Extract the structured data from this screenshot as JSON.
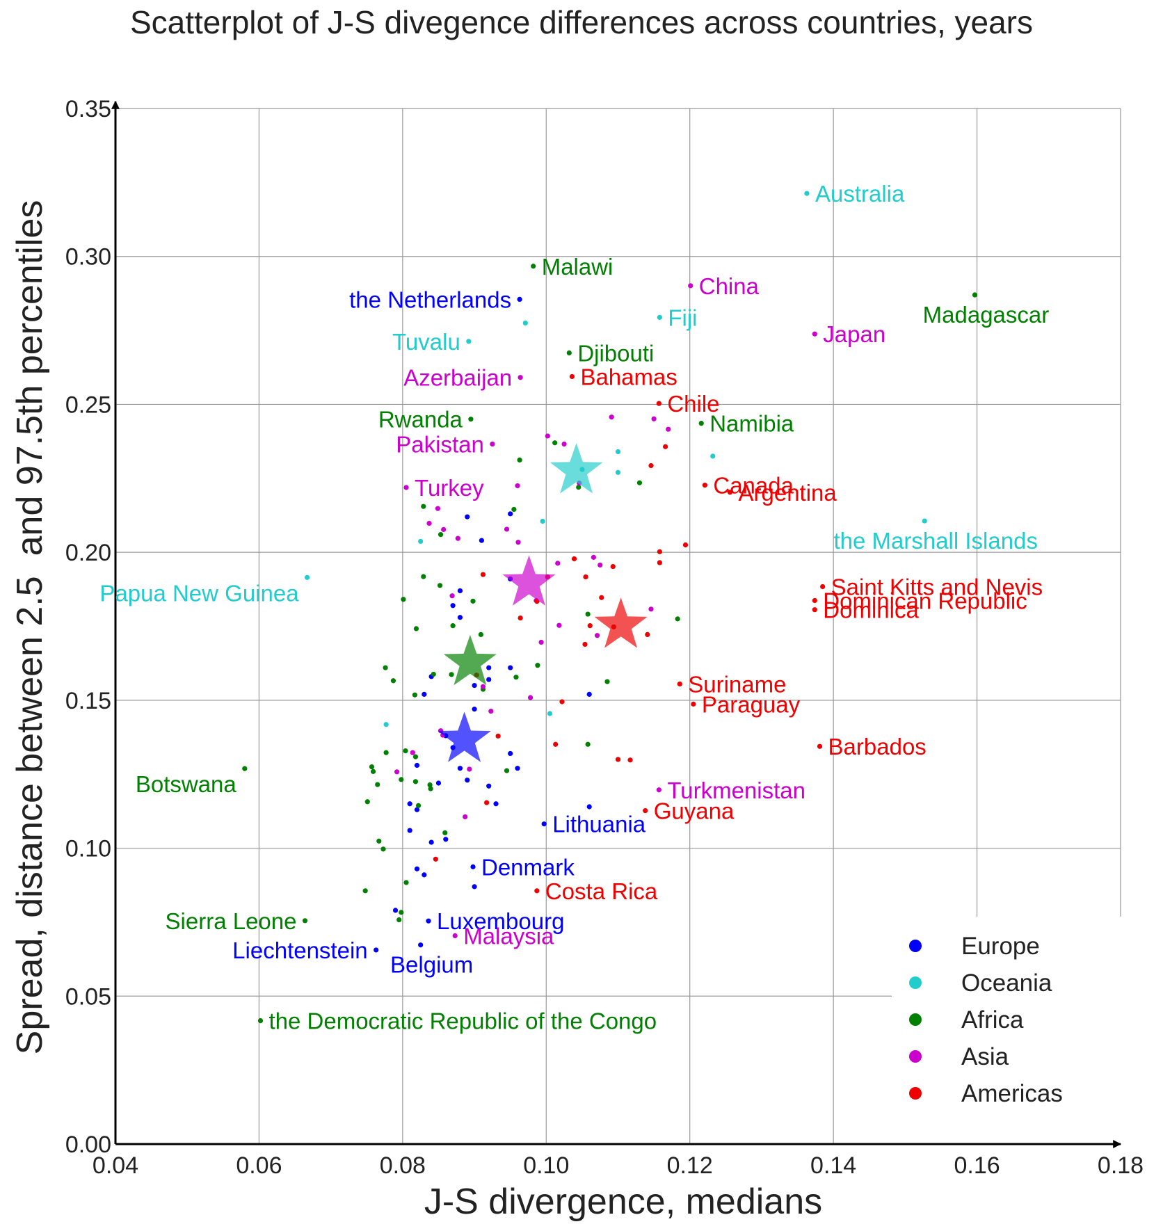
{
  "chart_data": {
    "type": "scatter",
    "title": "Scatterplot of J-S divegence differences across countries, years",
    "xlabel": "J-S divergence, medians",
    "ylabel": "Spread, distance between 2.5  and 97.5th percentiles",
    "xlim": [
      0.04,
      0.18
    ],
    "ylim": [
      0.0,
      0.35
    ],
    "xticks": [
      0.04,
      0.06,
      0.08,
      0.1,
      0.12,
      0.14,
      0.16,
      0.18
    ],
    "xtick_labels": [
      "0.04",
      "0.06",
      "0.08",
      "0.10",
      "0.12",
      "0.14",
      "0.16",
      "0.18"
    ],
    "yticks": [
      0.0,
      0.05,
      0.1,
      0.15,
      0.2,
      0.25,
      0.3,
      0.35
    ],
    "ytick_labels": [
      "0.00",
      "0.05",
      "0.10",
      "0.15",
      "0.20",
      "0.25",
      "0.30",
      "0.35"
    ],
    "grid": true,
    "legend_position": "bottom-right",
    "series": [
      {
        "name": "Europe",
        "color": "#0000ff",
        "centroid": [
          0.0886,
          0.1367
        ],
        "labeled": [
          {
            "label": "the Netherlands",
            "x": 0.0963,
            "y": 0.2855,
            "label_side": "left"
          },
          {
            "label": "Lithuania",
            "x": 0.0997,
            "y": 0.1082,
            "label_side": "right"
          },
          {
            "label": "Denmark",
            "x": 0.0898,
            "y": 0.0937,
            "label_side": "right"
          },
          {
            "label": "Luxembourg",
            "x": 0.0836,
            "y": 0.0754,
            "label_side": "right"
          },
          {
            "label": "Liechtenstein",
            "x": 0.0763,
            "y": 0.0656,
            "label_side": "left"
          },
          {
            "label": "Belgium",
            "x": 0.0825,
            "y": 0.0673,
            "label_side": "below"
          }
        ],
        "points": [
          [
            0.095,
            0.213
          ],
          [
            0.089,
            0.212
          ],
          [
            0.091,
            0.204
          ],
          [
            0.095,
            0.191
          ],
          [
            0.088,
            0.187
          ],
          [
            0.087,
            0.182
          ],
          [
            0.088,
            0.178
          ],
          [
            0.092,
            0.161
          ],
          [
            0.095,
            0.161
          ],
          [
            0.092,
            0.157
          ],
          [
            0.09,
            0.155
          ],
          [
            0.084,
            0.158
          ],
          [
            0.083,
            0.152
          ],
          [
            0.09,
            0.147
          ],
          [
            0.086,
            0.138
          ],
          [
            0.087,
            0.134
          ],
          [
            0.088,
            0.127
          ],
          [
            0.089,
            0.123
          ],
          [
            0.092,
            0.121
          ],
          [
            0.095,
            0.132
          ],
          [
            0.096,
            0.127
          ],
          [
            0.093,
            0.115
          ],
          [
            0.085,
            0.122
          ],
          [
            0.082,
            0.128
          ],
          [
            0.081,
            0.115
          ],
          [
            0.082,
            0.113
          ],
          [
            0.081,
            0.106
          ],
          [
            0.084,
            0.102
          ],
          [
            0.086,
            0.103
          ],
          [
            0.082,
            0.093
          ],
          [
            0.083,
            0.091
          ],
          [
            0.079,
            0.079
          ],
          [
            0.09,
            0.087
          ],
          [
            0.106,
            0.152
          ],
          [
            0.106,
            0.114
          ]
        ]
      },
      {
        "name": "Oceania",
        "color": "#22cccc",
        "centroid": [
          0.1042,
          0.2275
        ],
        "labeled": [
          {
            "label": "Australia",
            "x": 0.1363,
            "y": 0.3213,
            "label_side": "right"
          },
          {
            "label": "Fiji",
            "x": 0.1158,
            "y": 0.2794,
            "label_side": "right"
          },
          {
            "label": "Tuvalu",
            "x": 0.0892,
            "y": 0.2713,
            "label_side": "left"
          },
          {
            "label": "the Marshall Islands",
            "x": 0.1527,
            "y": 0.2106,
            "label_side": "below"
          },
          {
            "label": "Papua New Guinea",
            "x": 0.0667,
            "y": 0.1915,
            "label_side": "below-left"
          }
        ],
        "points": [
          [
            0.0971,
            0.2775
          ],
          [
            0.11,
            0.234
          ],
          [
            0.1232,
            0.2325
          ],
          [
            0.11,
            0.227
          ],
          [
            0.105,
            0.228
          ],
          [
            0.0995,
            0.2105
          ],
          [
            0.0825,
            0.2037
          ],
          [
            0.1005,
            0.1455
          ],
          [
            0.0777,
            0.1418
          ]
        ]
      },
      {
        "name": "Africa",
        "color": "#008000",
        "centroid": [
          0.0894,
          0.1627
        ],
        "labeled": [
          {
            "label": "Malawi",
            "x": 0.0982,
            "y": 0.2967,
            "label_side": "right"
          },
          {
            "label": "Madagascar",
            "x": 0.1597,
            "y": 0.287,
            "label_side": "below"
          },
          {
            "label": "Djibouti",
            "x": 0.1032,
            "y": 0.2674,
            "label_side": "right"
          },
          {
            "label": "Rwanda",
            "x": 0.0895,
            "y": 0.245,
            "label_side": "left"
          },
          {
            "label": "Namibia",
            "x": 0.1216,
            "y": 0.2436,
            "label_side": "right"
          },
          {
            "label": "Botswana",
            "x": 0.058,
            "y": 0.1269,
            "label_side": "below-left"
          },
          {
            "label": "Sierra Leone",
            "x": 0.0664,
            "y": 0.0755,
            "label_side": "left"
          },
          {
            "label": "the Democratic Republic of the Congo",
            "x": 0.0602,
            "y": 0.0417,
            "label_side": "right"
          }
        ],
        "points": [
          [
            0.0963,
            0.2312
          ],
          [
            0.1012,
            0.237
          ],
          [
            0.113,
            0.2235
          ],
          [
            0.1045,
            0.222
          ],
          [
            0.0955,
            0.2145
          ],
          [
            0.0829,
            0.2155
          ],
          [
            0.0853,
            0.206
          ],
          [
            0.0829,
            0.1918
          ],
          [
            0.0852,
            0.1888
          ],
          [
            0.0801,
            0.1841
          ],
          [
            0.0898,
            0.1835
          ],
          [
            0.0819,
            0.1742
          ],
          [
            0.087,
            0.1752
          ],
          [
            0.0909,
            0.1722
          ],
          [
            0.0776,
            0.161
          ],
          [
            0.0787,
            0.1566
          ],
          [
            0.0843,
            0.1588
          ],
          [
            0.0868,
            0.1587
          ],
          [
            0.0912,
            0.1537
          ],
          [
            0.0817,
            0.1518
          ],
          [
            0.0958,
            0.1578
          ],
          [
            0.0988,
            0.1618
          ],
          [
            0.1085,
            0.1563
          ],
          [
            0.1058,
            0.1791
          ],
          [
            0.1183,
            0.1775
          ],
          [
            0.0804,
            0.1329
          ],
          [
            0.0777,
            0.1323
          ],
          [
            0.0818,
            0.1309
          ],
          [
            0.0757,
            0.1275
          ],
          [
            0.0759,
            0.1259
          ],
          [
            0.0765,
            0.1215
          ],
          [
            0.0798,
            0.1232
          ],
          [
            0.0818,
            0.1225
          ],
          [
            0.0839,
            0.1201
          ],
          [
            0.0838,
            0.1214
          ],
          [
            0.0751,
            0.1157
          ],
          [
            0.0822,
            0.1144
          ],
          [
            0.0945,
            0.1262
          ],
          [
            0.1058,
            0.1351
          ],
          [
            0.0767,
            0.1024
          ],
          [
            0.0773,
            0.0997
          ],
          [
            0.0859,
            0.1052
          ],
          [
            0.0805,
            0.0884
          ],
          [
            0.0748,
            0.0856
          ],
          [
            0.0798,
            0.0783
          ],
          [
            0.0795,
            0.0758
          ]
        ]
      },
      {
        "name": "Asia",
        "color": "#cc00cc",
        "centroid": [
          0.0976,
          0.1896
        ],
        "labeled": [
          {
            "label": "China",
            "x": 0.1201,
            "y": 0.2901,
            "label_side": "right"
          },
          {
            "label": "Japan",
            "x": 0.1374,
            "y": 0.2738,
            "label_side": "right"
          },
          {
            "label": "Azerbaijan",
            "x": 0.0964,
            "y": 0.2591,
            "label_side": "left"
          },
          {
            "label": "Pakistan",
            "x": 0.0925,
            "y": 0.2366,
            "label_side": "left"
          },
          {
            "label": "Turkey",
            "x": 0.0805,
            "y": 0.2219,
            "label_side": "right"
          },
          {
            "label": "Turkmenistan",
            "x": 0.1157,
            "y": 0.1197,
            "label_side": "right"
          },
          {
            "label": "Malaysia",
            "x": 0.0873,
            "y": 0.0704,
            "label_side": "right"
          }
        ],
        "points": [
          [
            0.1091,
            0.2457
          ],
          [
            0.115,
            0.2451
          ],
          [
            0.117,
            0.2416
          ],
          [
            0.1002,
            0.2393
          ],
          [
            0.1025,
            0.2366
          ],
          [
            0.096,
            0.2225
          ],
          [
            0.1046,
            0.2234
          ],
          [
            0.0849,
            0.2148
          ],
          [
            0.0837,
            0.2098
          ],
          [
            0.0857,
            0.2077
          ],
          [
            0.0945,
            0.2078
          ],
          [
            0.0961,
            0.2034
          ],
          [
            0.0877,
            0.2047
          ],
          [
            0.1016,
            0.1963
          ],
          [
            0.1066,
            0.1983
          ],
          [
            0.1075,
            0.1957
          ],
          [
            0.0869,
            0.1853
          ],
          [
            0.0986,
            0.1837
          ],
          [
            0.1018,
            0.1753
          ],
          [
            0.1146,
            0.1808
          ],
          [
            0.1071,
            0.1719
          ],
          [
            0.0978,
            0.1509
          ],
          [
            0.0993,
            0.1696
          ],
          [
            0.0912,
            0.1546
          ],
          [
            0.0923,
            0.1463
          ],
          [
            0.0853,
            0.1397
          ],
          [
            0.0856,
            0.1382
          ],
          [
            0.0893,
            0.1267
          ],
          [
            0.0814,
            0.1323
          ],
          [
            0.0792,
            0.1258
          ],
          [
            0.0887,
            0.1106
          ]
        ]
      },
      {
        "name": "Americas",
        "color": "#ee0000",
        "centroid": [
          0.1104,
          0.1753
        ],
        "labeled": [
          {
            "label": "Bahamas",
            "x": 0.1036,
            "y": 0.2594,
            "label_side": "right"
          },
          {
            "label": "Chile",
            "x": 0.1157,
            "y": 0.2503,
            "label_side": "right"
          },
          {
            "label": "Canada",
            "x": 0.1221,
            "y": 0.2227,
            "label_side": "right"
          },
          {
            "label": "Argentina",
            "x": 0.1256,
            "y": 0.2203,
            "label_side": "right"
          },
          {
            "label": "Saint Kitts and Nevis",
            "x": 0.1385,
            "y": 0.1884,
            "label_side": "right"
          },
          {
            "label": "Dominican Republic",
            "x": 0.1374,
            "y": 0.1837,
            "label_side": "right"
          },
          {
            "label": "Dominica",
            "x": 0.1374,
            "y": 0.1806,
            "label_side": "right"
          },
          {
            "label": "Suriname",
            "x": 0.1186,
            "y": 0.1555,
            "label_side": "right"
          },
          {
            "label": "Paraguay",
            "x": 0.1205,
            "y": 0.1487,
            "label_side": "right"
          },
          {
            "label": "Barbados",
            "x": 0.1381,
            "y": 0.1344,
            "label_side": "right"
          },
          {
            "label": "Guyana",
            "x": 0.1138,
            "y": 0.1127,
            "label_side": "right"
          },
          {
            "label": "Costa Rica",
            "x": 0.0987,
            "y": 0.0856,
            "label_side": "right"
          }
        ],
        "points": [
          [
            0.1166,
            0.2357
          ],
          [
            0.1146,
            0.2293
          ],
          [
            0.1158,
            0.2002
          ],
          [
            0.1194,
            0.2025
          ],
          [
            0.1158,
            0.1965
          ],
          [
            0.1039,
            0.1978
          ],
          [
            0.1093,
            0.1952
          ],
          [
            0.1055,
            0.1917
          ],
          [
            0.1002,
            0.1917
          ],
          [
            0.0912,
            0.1925
          ],
          [
            0.1077,
            0.1847
          ],
          [
            0.0987,
            0.1834
          ],
          [
            0.0964,
            0.1778
          ],
          [
            0.1061,
            0.1752
          ],
          [
            0.1094,
            0.1748
          ],
          [
            0.1141,
            0.1722
          ],
          [
            0.1054,
            0.1689
          ],
          [
            0.1022,
            0.1495
          ],
          [
            0.0903,
            0.1585
          ],
          [
            0.0933,
            0.1379
          ],
          [
            0.1013,
            0.1351
          ],
          [
            0.11,
            0.13
          ],
          [
            0.1117,
            0.1298
          ],
          [
            0.0917,
            0.1154
          ],
          [
            0.0846,
            0.0963
          ]
        ]
      }
    ]
  }
}
